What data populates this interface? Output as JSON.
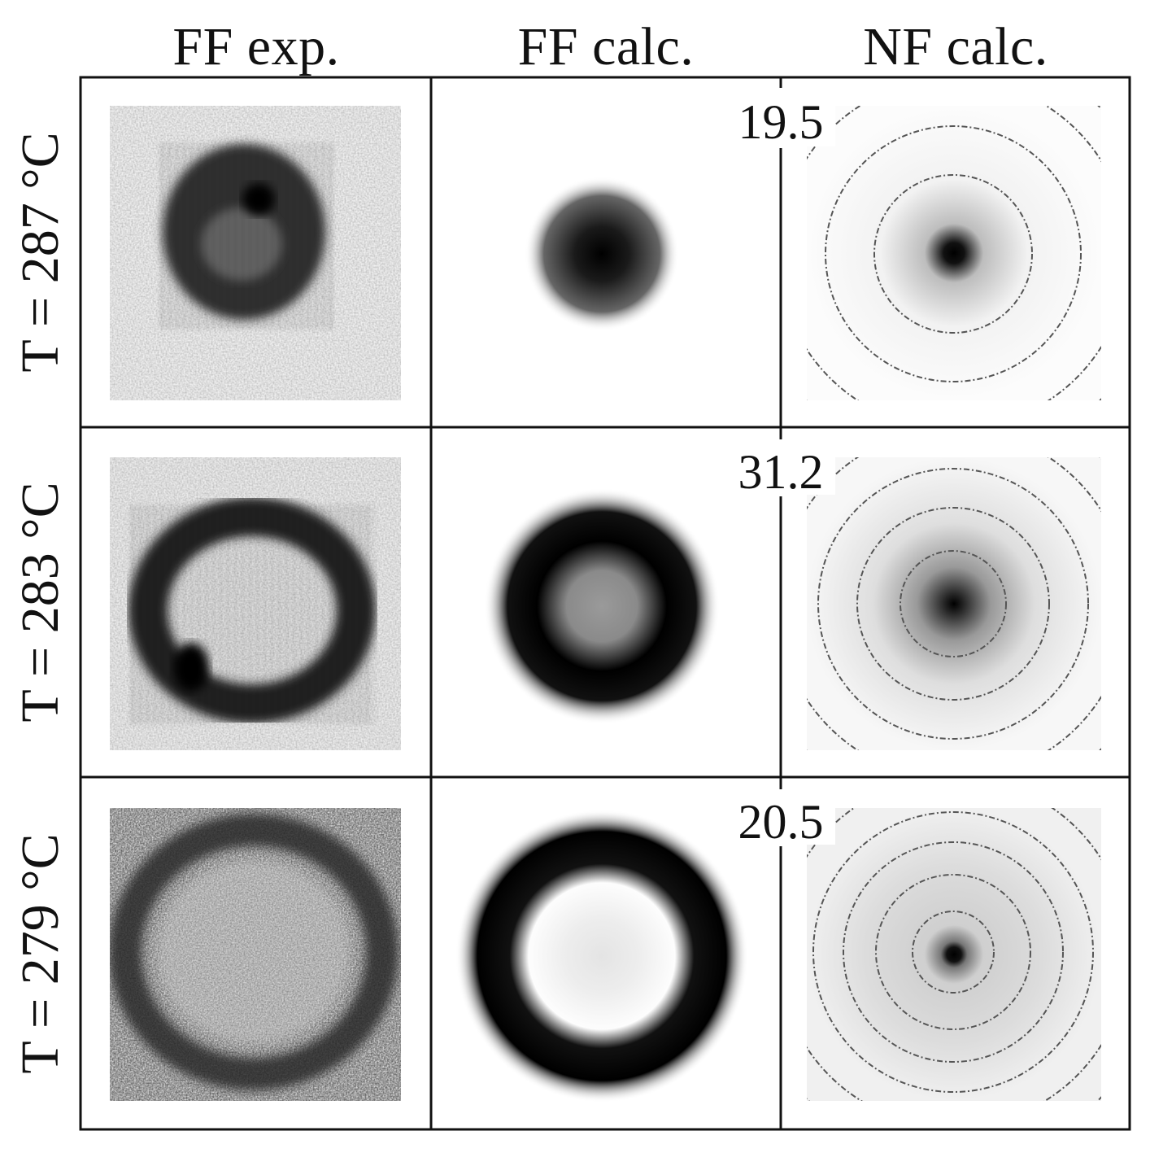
{
  "columns": [
    "FF exp.",
    "FF calc.",
    "NF calc."
  ],
  "rows": [
    {
      "label": "T = 287 °C",
      "value": "19.5"
    },
    {
      "label": "T = 283 °C",
      "value": "31.2"
    },
    {
      "label": "T = 279 °C",
      "value": "20.5"
    }
  ]
}
